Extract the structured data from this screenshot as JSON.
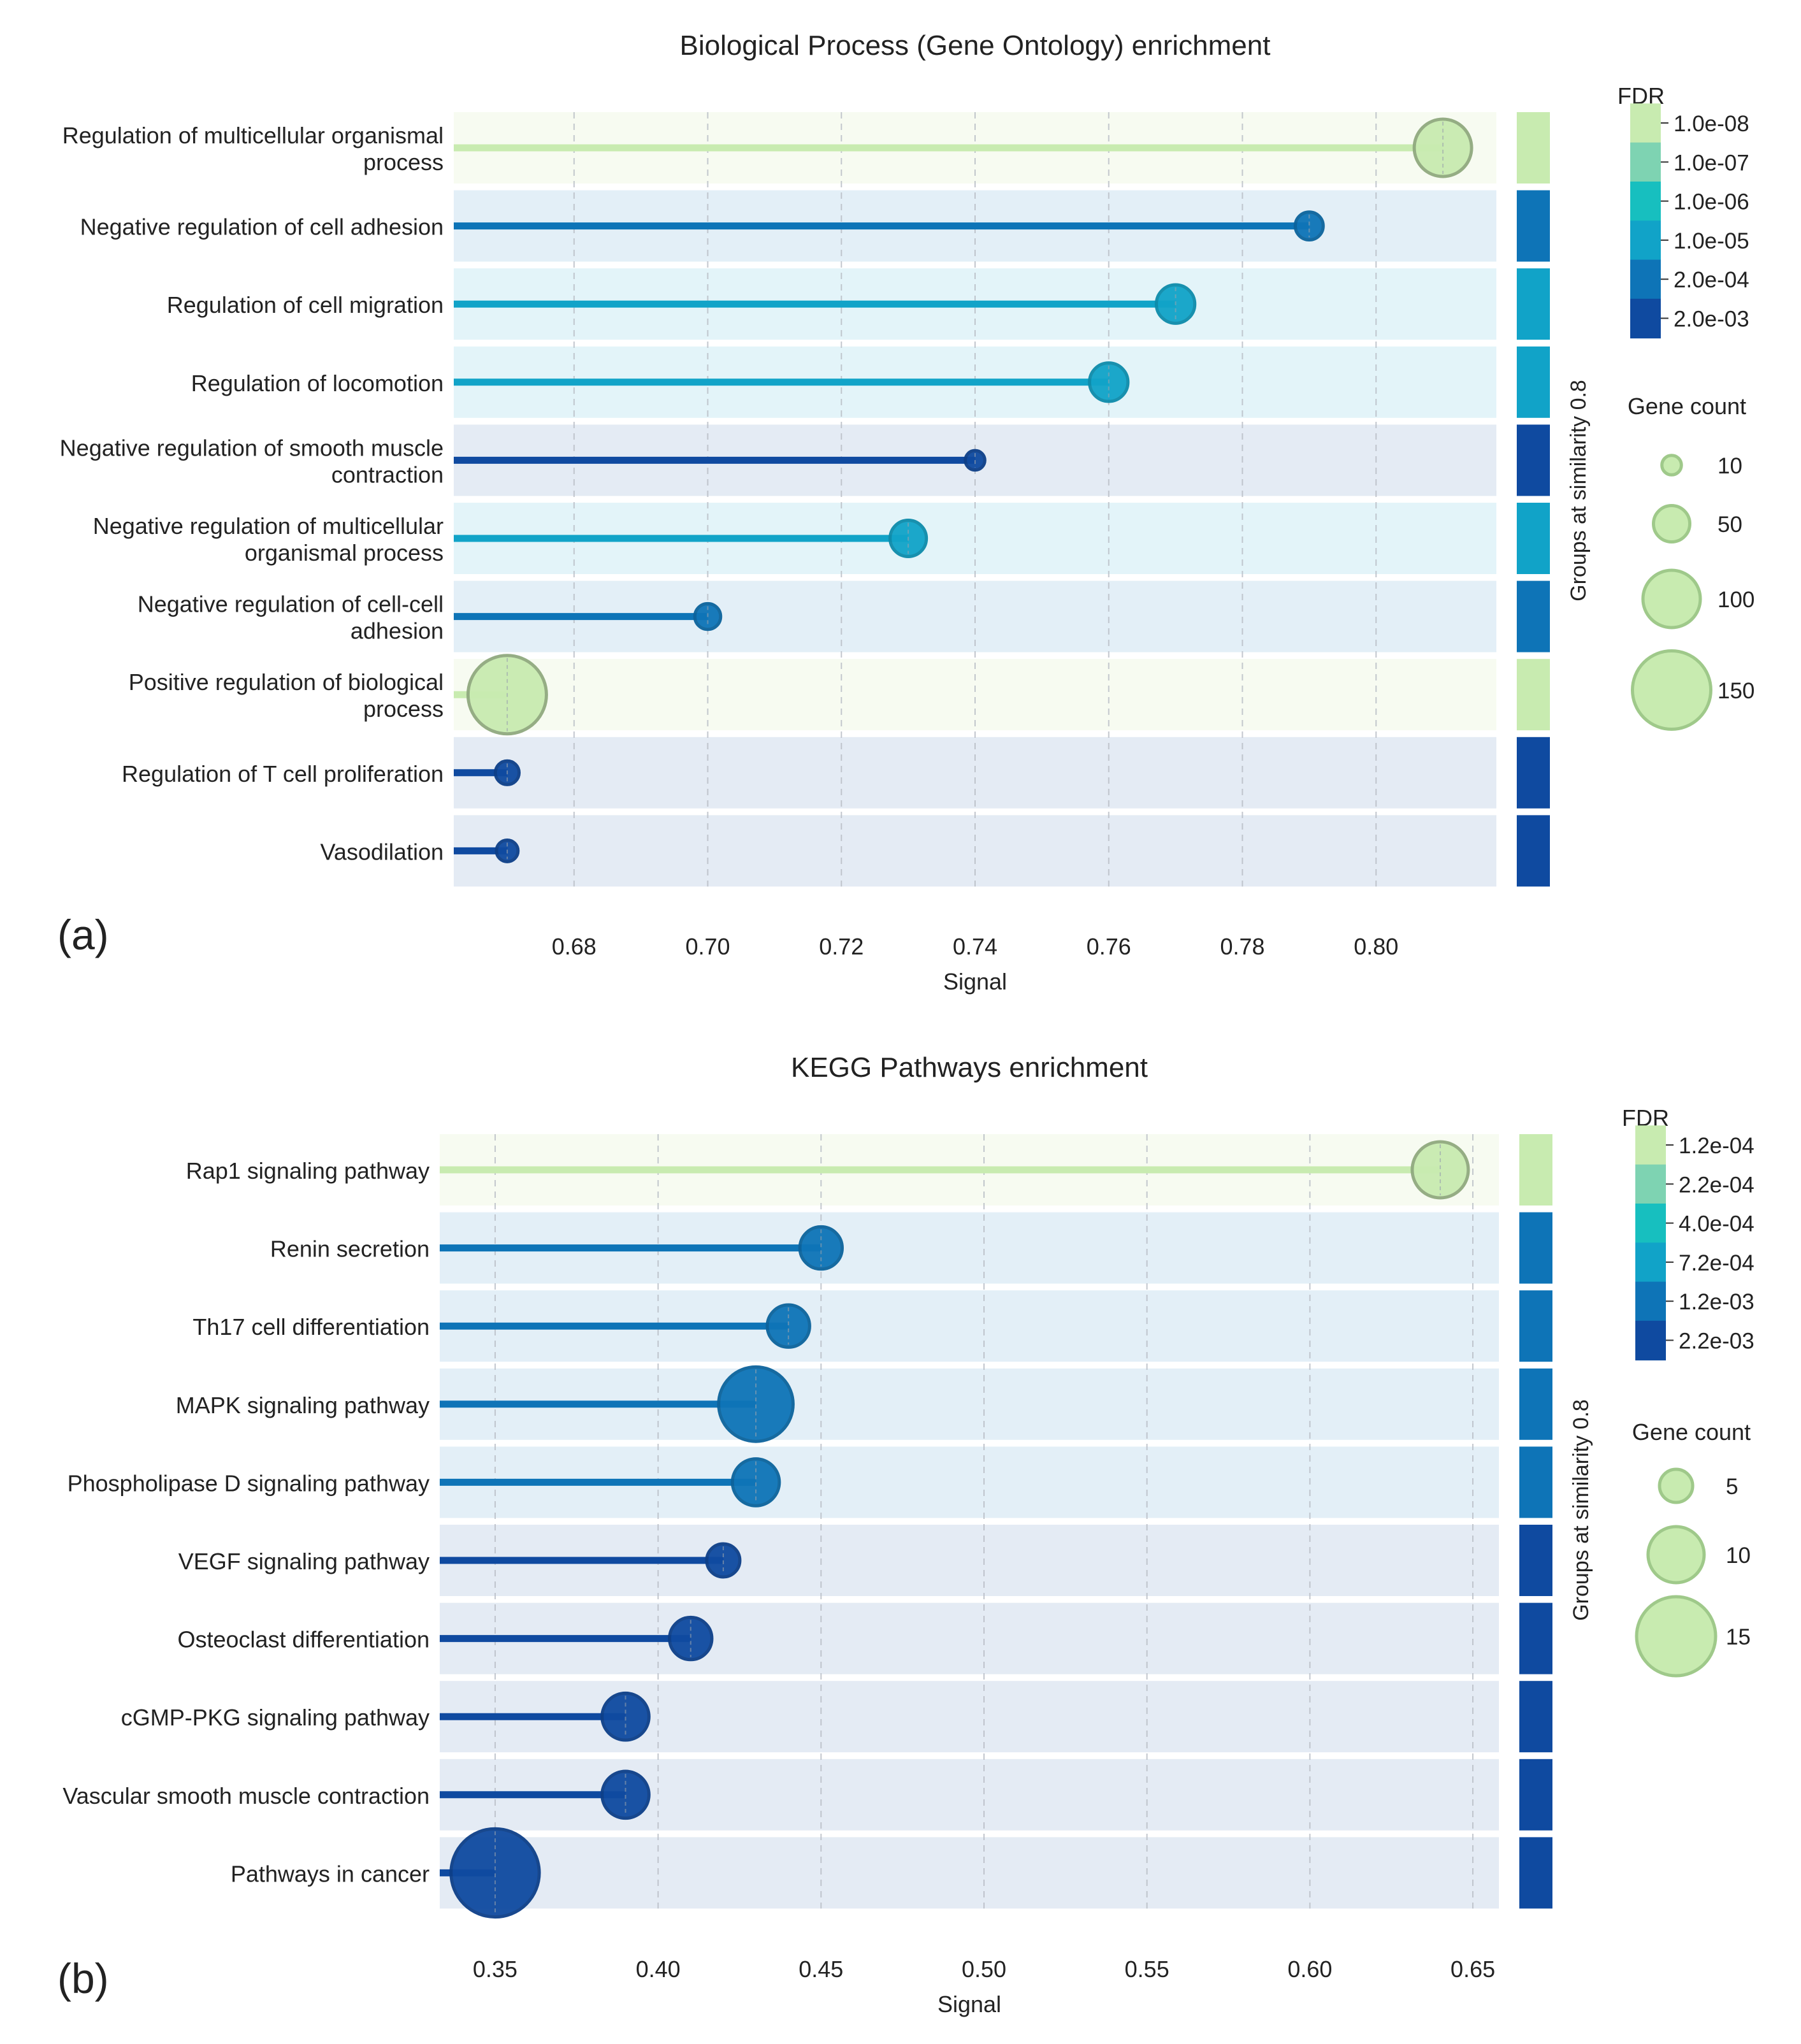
{
  "panels": [
    {
      "label": "(a)",
      "chart_data": {
        "type": "lollipop",
        "title": "Biological Process (Gene Ontology) enrichment",
        "xlabel": "Signal",
        "ylabel": "",
        "xlim": [
          0.662,
          0.818
        ],
        "xticks": [
          0.68,
          0.7,
          0.72,
          0.74,
          0.76,
          0.78,
          0.8
        ],
        "xtick_labels": [
          "0.68",
          "0.70",
          "0.72",
          "0.74",
          "0.76",
          "0.78",
          "0.80"
        ],
        "grid": "vertical dashed",
        "terms": [
          {
            "name": "Regulation of multicellular organismal process",
            "lines": [
              "Regulation of multicellular organismal",
              "process"
            ],
            "signal": 0.81,
            "gene_count": 100,
            "fdr": "1.0e-08",
            "color": "#c8ebb0",
            "band": "#f7fbf1"
          },
          {
            "name": "Negative regulation of cell adhesion",
            "lines": [
              "Negative regulation of cell adhesion"
            ],
            "signal": 0.79,
            "gene_count": 30,
            "fdr": "2.0e-04",
            "color": "#0e74b7",
            "band": "#e3eff7"
          },
          {
            "name": "Regulation of cell migration",
            "lines": [
              "Regulation of cell migration"
            ],
            "signal": 0.77,
            "gene_count": 55,
            "fdr": "1.0e-05",
            "color": "#11a3c8",
            "band": "#e3f4f9"
          },
          {
            "name": "Regulation of locomotion",
            "lines": [
              "Regulation of locomotion"
            ],
            "signal": 0.76,
            "gene_count": 55,
            "fdr": "1.0e-05",
            "color": "#11a3c8",
            "band": "#e3f4f9"
          },
          {
            "name": "Negative regulation of smooth muscle contraction",
            "lines": [
              "Negative regulation of smooth muscle",
              "contraction"
            ],
            "signal": 0.74,
            "gene_count": 10,
            "fdr": "2.0e-03",
            "color": "#0f4aa0",
            "band": "#e4ebf4"
          },
          {
            "name": "Negative regulation of multicellular organismal process",
            "lines": [
              "Negative regulation of multicellular",
              "organismal process"
            ],
            "signal": 0.73,
            "gene_count": 50,
            "fdr": "1.0e-05",
            "color": "#11a3c8",
            "band": "#e3f4f9"
          },
          {
            "name": "Negative regulation of cell-cell adhesion",
            "lines": [
              "Negative regulation of cell-cell",
              "adhesion"
            ],
            "signal": 0.7,
            "gene_count": 25,
            "fdr": "2.0e-04",
            "color": "#0e74b7",
            "band": "#e3eff7"
          },
          {
            "name": "Positive regulation of biological process",
            "lines": [
              "Positive regulation of biological",
              "process"
            ],
            "signal": 0.67,
            "gene_count": 150,
            "fdr": "1.0e-08",
            "color": "#c8ebb0",
            "band": "#f7fbf1"
          },
          {
            "name": "Regulation of T cell proliferation",
            "lines": [
              "Regulation of T cell proliferation"
            ],
            "signal": 0.67,
            "gene_count": 20,
            "fdr": "2.0e-03",
            "color": "#0f4aa0",
            "band": "#e4ebf4"
          },
          {
            "name": "Vasodilation",
            "lines": [
              "Vasodilation"
            ],
            "signal": 0.67,
            "gene_count": 15,
            "fdr": "2.0e-03",
            "color": "#0f4aa0",
            "band": "#e4ebf4"
          }
        ],
        "group_label": "Groups at similarity 0.8",
        "fdr_legend": {
          "title": "FDR",
          "levels": [
            {
              "label": "1.0e-08",
              "color": "#c8ebb0"
            },
            {
              "label": "1.0e-07",
              "color": "#7ed3b2"
            },
            {
              "label": "1.0e-06",
              "color": "#17bfbf"
            },
            {
              "label": "1.0e-05",
              "color": "#11a3c8"
            },
            {
              "label": "2.0e-04",
              "color": "#0e74b7"
            },
            {
              "label": "2.0e-03",
              "color": "#0f4aa0"
            }
          ]
        },
        "size_legend": {
          "title": "Gene count",
          "entries": [
            {
              "label": "10",
              "value": 10
            },
            {
              "label": "50",
              "value": 50
            },
            {
              "label": "100",
              "value": 100
            },
            {
              "label": "150",
              "value": 150
            }
          ]
        }
      }
    },
    {
      "label": "(b)",
      "chart_data": {
        "type": "lollipop",
        "title": "KEGG Pathways enrichment",
        "xlabel": "Signal",
        "ylabel": "",
        "xlim": [
          0.333,
          0.658
        ],
        "xticks": [
          0.35,
          0.4,
          0.45,
          0.5,
          0.55,
          0.6,
          0.65
        ],
        "xtick_labels": [
          "0.35",
          "0.40",
          "0.45",
          "0.50",
          "0.55",
          "0.60",
          "0.65"
        ],
        "grid": "vertical dashed",
        "terms": [
          {
            "name": "Rap1 signaling pathway",
            "lines": [
              "Rap1 signaling pathway"
            ],
            "signal": 0.64,
            "gene_count": 10,
            "fdr": "1.2e-04",
            "color": "#c8ebb0",
            "band": "#f7fbf1"
          },
          {
            "name": "Renin secretion",
            "lines": [
              "Renin secretion"
            ],
            "signal": 0.45,
            "gene_count": 7,
            "fdr": "1.2e-03",
            "color": "#0e74b7",
            "band": "#e3eff7"
          },
          {
            "name": "Th17 cell differentiation",
            "lines": [
              "Th17 cell differentiation"
            ],
            "signal": 0.44,
            "gene_count": 7,
            "fdr": "1.2e-03",
            "color": "#0e74b7",
            "band": "#e3eff7"
          },
          {
            "name": "MAPK signaling pathway",
            "lines": [
              "MAPK signaling pathway"
            ],
            "signal": 0.43,
            "gene_count": 14,
            "fdr": "1.2e-03",
            "color": "#0e74b7",
            "band": "#e3eff7"
          },
          {
            "name": "Phospholipase D signaling pathway",
            "lines": [
              "Phospholipase D signaling pathway"
            ],
            "signal": 0.43,
            "gene_count": 8,
            "fdr": "1.2e-03",
            "color": "#0e74b7",
            "band": "#e3eff7"
          },
          {
            "name": "VEGF signaling pathway",
            "lines": [
              "VEGF signaling pathway"
            ],
            "signal": 0.42,
            "gene_count": 5,
            "fdr": "2.2e-03",
            "color": "#0f4aa0",
            "band": "#e4ebf4"
          },
          {
            "name": "Osteoclast differentiation",
            "lines": [
              "Osteoclast differentiation"
            ],
            "signal": 0.41,
            "gene_count": 7,
            "fdr": "2.2e-03",
            "color": "#0f4aa0",
            "band": "#e4ebf4"
          },
          {
            "name": "cGMP-PKG signaling pathway",
            "lines": [
              "cGMP-PKG signaling pathway"
            ],
            "signal": 0.39,
            "gene_count": 8,
            "fdr": "2.2e-03",
            "color": "#0f4aa0",
            "band": "#e4ebf4"
          },
          {
            "name": "Vascular smooth muscle contraction",
            "lines": [
              "Vascular smooth muscle contraction"
            ],
            "signal": 0.39,
            "gene_count": 8,
            "fdr": "2.2e-03",
            "color": "#0f4aa0",
            "band": "#e4ebf4"
          },
          {
            "name": "Pathways in cancer",
            "lines": [
              "Pathways in cancer"
            ],
            "signal": 0.35,
            "gene_count": 17,
            "fdr": "2.2e-03",
            "color": "#0f4aa0",
            "band": "#e4ebf4"
          }
        ],
        "group_label": "Groups at similarity 0.8",
        "fdr_legend": {
          "title": "FDR",
          "levels": [
            {
              "label": "1.2e-04",
              "color": "#c8ebb0"
            },
            {
              "label": "2.2e-04",
              "color": "#7ed3b2"
            },
            {
              "label": "4.0e-04",
              "color": "#17bfbf"
            },
            {
              "label": "7.2e-04",
              "color": "#11a3c8"
            },
            {
              "label": "1.2e-03",
              "color": "#0e74b7"
            },
            {
              "label": "2.2e-03",
              "color": "#0f4aa0"
            }
          ]
        },
        "size_legend": {
          "title": "Gene count",
          "entries": [
            {
              "label": "5",
              "value": 5
            },
            {
              "label": "10",
              "value": 10
            },
            {
              "label": "15",
              "value": 15
            }
          ]
        }
      }
    }
  ]
}
